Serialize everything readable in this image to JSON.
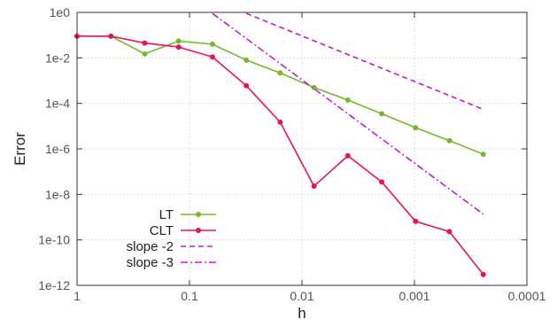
{
  "chart_data": {
    "type": "line",
    "xlabel": "h",
    "ylabel": "Error",
    "x_scale": "log",
    "y_scale": "log",
    "x_reversed": true,
    "xlim": [
      1,
      0.0001
    ],
    "ylim": [
      1e-12,
      1
    ],
    "grid": true,
    "legend_position": "bottom-left",
    "x_ticks": [
      {
        "value": 1,
        "label": "1"
      },
      {
        "value": 0.1,
        "label": "0.1"
      },
      {
        "value": 0.01,
        "label": "0.01"
      },
      {
        "value": 0.001,
        "label": "0.001"
      },
      {
        "value": 0.0001,
        "label": "0.0001"
      }
    ],
    "y_ticks": [
      {
        "value": 1,
        "label": "1e0"
      },
      {
        "value": 0.01,
        "label": "1e-2"
      },
      {
        "value": 0.0001,
        "label": "1e-4"
      },
      {
        "value": 1e-06,
        "label": "1e-6"
      },
      {
        "value": 1e-08,
        "label": "1e-8"
      },
      {
        "value": 1e-10,
        "label": "1e-10"
      },
      {
        "value": 1e-12,
        "label": "1e-12"
      }
    ],
    "series": [
      {
        "name": "LT",
        "color": "#76b82a",
        "style": "solid",
        "marker": true,
        "points": [
          [
            1,
            0.09
          ],
          [
            0.5,
            0.09
          ],
          [
            0.25,
            0.015
          ],
          [
            0.125,
            0.055
          ],
          [
            0.0625,
            0.04
          ],
          [
            0.03125,
            0.008
          ],
          [
            0.015625,
            0.0022
          ],
          [
            0.0078125,
            0.0005
          ],
          [
            0.00390625,
            0.00014
          ],
          [
            0.001953125,
            3.5e-05
          ],
          [
            0.0009765625,
            8.5e-06
          ],
          [
            0.00048828125,
            2.3e-06
          ],
          [
            0.000244140625,
            5.8e-07
          ]
        ]
      },
      {
        "name": "CLT",
        "color": "#e8125c",
        "style": "solid",
        "marker": true,
        "points": [
          [
            1,
            0.09
          ],
          [
            0.5,
            0.09
          ],
          [
            0.25,
            0.045
          ],
          [
            0.125,
            0.03
          ],
          [
            0.0625,
            0.011
          ],
          [
            0.03125,
            0.0006
          ],
          [
            0.015625,
            1.5e-05
          ],
          [
            0.0078125,
            2.3e-08
          ],
          [
            0.00390625,
            5e-07
          ],
          [
            0.001953125,
            3.5e-08
          ],
          [
            0.0009765625,
            6.5e-10
          ],
          [
            0.00048828125,
            2.3e-10
          ],
          [
            0.000244140625,
            3e-12
          ]
        ]
      },
      {
        "name": "slope -2",
        "color": "#c41ccc",
        "style": "dashed",
        "marker": false,
        "points": [
          [
            0.03125,
            0.9
          ],
          [
            0.000244140625,
            5.5e-05
          ]
        ]
      },
      {
        "name": "slope -3",
        "color": "#c41ccc",
        "style": "dashdot",
        "marker": false,
        "points": [
          [
            0.0625,
            0.9
          ],
          [
            0.000244140625,
            1.35e-09
          ]
        ]
      }
    ]
  }
}
